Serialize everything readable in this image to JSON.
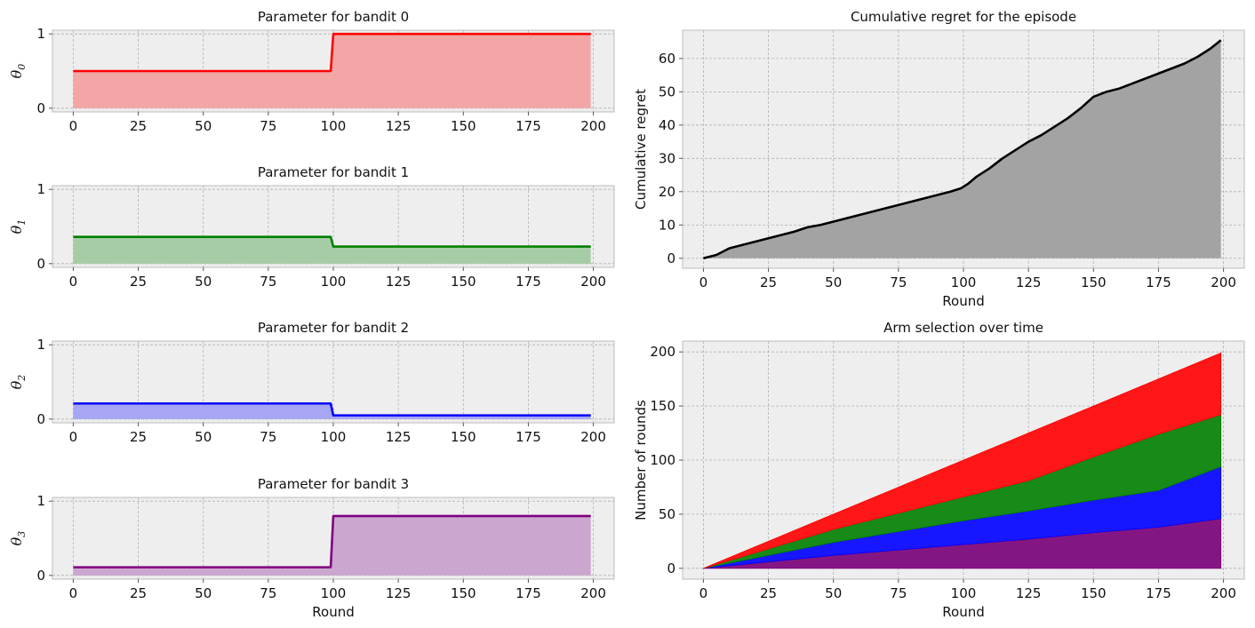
{
  "chart_data": [
    {
      "type": "area",
      "title": "Parameter for bandit 0",
      "ylabel_symbol": "θ",
      "ylabel_subscript": "0",
      "xlabel": "",
      "x_ticks": [
        "0",
        "25",
        "50",
        "75",
        "100",
        "125",
        "150",
        "175",
        "200"
      ],
      "y_ticks": [
        "0",
        "1"
      ],
      "xlim": [
        -8,
        208
      ],
      "ylim": [
        -0.05,
        1.05
      ],
      "grid": true,
      "color": "#ff0000",
      "fill_color": "#f2a6a6",
      "series": [
        {
          "x_start": 0,
          "x_end": 199,
          "change_at": 99,
          "value_before": 0.5,
          "value_after": 1.0
        }
      ]
    },
    {
      "type": "area",
      "title": "Parameter for bandit 1",
      "ylabel_symbol": "θ",
      "ylabel_subscript": "1",
      "xlabel": "",
      "x_ticks": [
        "0",
        "25",
        "50",
        "75",
        "100",
        "125",
        "150",
        "175",
        "200"
      ],
      "y_ticks": [
        "0",
        "1"
      ],
      "xlim": [
        -8,
        208
      ],
      "ylim": [
        -0.05,
        1.05
      ],
      "grid": true,
      "color": "#008000",
      "fill_color": "#a6cca6",
      "series": [
        {
          "x_start": 0,
          "x_end": 199,
          "change_at": 99,
          "value_before": 0.36,
          "value_after": 0.23
        }
      ]
    },
    {
      "type": "area",
      "title": "Parameter for bandit 2",
      "ylabel_symbol": "θ",
      "ylabel_subscript": "2",
      "xlabel": "",
      "x_ticks": [
        "0",
        "25",
        "50",
        "75",
        "100",
        "125",
        "150",
        "175",
        "200"
      ],
      "y_ticks": [
        "0",
        "1"
      ],
      "xlim": [
        -8,
        208
      ],
      "ylim": [
        -0.05,
        1.05
      ],
      "grid": true,
      "color": "#0000ff",
      "fill_color": "#a6a6f2",
      "series": [
        {
          "x_start": 0,
          "x_end": 199,
          "change_at": 99,
          "value_before": 0.21,
          "value_after": 0.05
        }
      ]
    },
    {
      "type": "area",
      "title": "Parameter for bandit 3",
      "ylabel_symbol": "θ",
      "ylabel_subscript": "3",
      "xlabel": "Round",
      "x_ticks": [
        "0",
        "25",
        "50",
        "75",
        "100",
        "125",
        "150",
        "175",
        "200"
      ],
      "y_ticks": [
        "0",
        "1"
      ],
      "xlim": [
        -8,
        208
      ],
      "ylim": [
        -0.05,
        1.05
      ],
      "grid": true,
      "color": "#800080",
      "fill_color": "#cba6cf",
      "series": [
        {
          "x_start": 0,
          "x_end": 199,
          "change_at": 99,
          "value_before": 0.11,
          "value_after": 0.8
        }
      ]
    },
    {
      "type": "area",
      "title": "Cumulative regret for the episode",
      "xlabel": "Round",
      "ylabel": "Cumulative regret",
      "x_ticks": [
        "0",
        "25",
        "50",
        "75",
        "100",
        "125",
        "150",
        "175",
        "200"
      ],
      "y_ticks": [
        "0",
        "10",
        "20",
        "30",
        "40",
        "50",
        "60"
      ],
      "xlim": [
        -8,
        208
      ],
      "ylim": [
        -3,
        68.5
      ],
      "grid": true,
      "color": "#000000",
      "fill_color": "#a3a3a3",
      "series": [
        {
          "x": [
            0,
            5,
            10,
            15,
            20,
            25,
            30,
            35,
            40,
            45,
            50,
            55,
            60,
            65,
            70,
            75,
            80,
            85,
            90,
            95,
            99,
            102,
            105,
            110,
            115,
            120,
            125,
            130,
            135,
            140,
            145,
            150,
            155,
            160,
            165,
            170,
            175,
            180,
            185,
            190,
            195,
            199
          ],
          "values": [
            0,
            1,
            3,
            4,
            5,
            6,
            7,
            8,
            9.3,
            10,
            11,
            12,
            13,
            14,
            15,
            16,
            17,
            18,
            19,
            20,
            21,
            22.5,
            24.5,
            27,
            30,
            32.5,
            35,
            37,
            39.5,
            42,
            45,
            48.5,
            50,
            51,
            52.5,
            54,
            55.5,
            57,
            58.5,
            60.5,
            63,
            65.5
          ]
        }
      ]
    },
    {
      "type": "area",
      "stacked": true,
      "title": "Arm selection over time",
      "xlabel": "Round",
      "ylabel": "Number of rounds",
      "x_ticks": [
        "0",
        "25",
        "50",
        "75",
        "100",
        "125",
        "150",
        "175",
        "200"
      ],
      "y_ticks": [
        "0",
        "50",
        "100",
        "150",
        "200"
      ],
      "xlim": [
        -8,
        208
      ],
      "ylim": [
        -10,
        210
      ],
      "grid": true,
      "x": [
        0,
        25,
        50,
        75,
        100,
        125,
        150,
        175,
        199
      ],
      "series": [
        {
          "color": "#800080",
          "fill_color": "#841684",
          "values": [
            0,
            6,
            12,
            17,
            22,
            27,
            33,
            38,
            46
          ]
        },
        {
          "color": "#0000ff",
          "fill_color": "#1717ff",
          "values": [
            0,
            6,
            12,
            17,
            22,
            26,
            30,
            34,
            48
          ]
        },
        {
          "color": "#008000",
          "fill_color": "#178a17",
          "values": [
            0,
            6,
            12,
            17,
            22,
            28,
            40,
            52,
            48
          ]
        },
        {
          "color": "#ff0000",
          "fill_color": "#ff1717",
          "values": [
            0,
            7,
            14,
            24,
            34,
            44,
            47,
            51,
            57
          ]
        }
      ]
    }
  ]
}
